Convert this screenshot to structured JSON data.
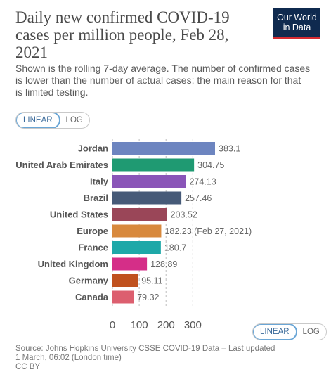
{
  "title": "Daily new confirmed COVID-19 cases per million people, Feb 28, 2021",
  "logo_line1": "Our World",
  "logo_line2": "in Data",
  "subtitle": "Shown is the rolling 7-day average. The number of confirmed cases is lower than the number of actual cases; the main reason for that is limited testing.",
  "scale_toggle": {
    "linear": "LINEAR",
    "log": "LOG",
    "active": "linear"
  },
  "source_line1": "Source: Johns Hopkins University CSSE COVID-19 Data – Last updated",
  "source_line2": "1 March, 06:02 (London time)",
  "license": "CC BY",
  "chart_data": {
    "type": "bar",
    "orientation": "horizontal",
    "categories": [
      "Jordan",
      "United Arab Emirates",
      "Italy",
      "Brazil",
      "United States",
      "Europe",
      "France",
      "United Kingdom",
      "Germany",
      "Canada"
    ],
    "values": [
      383.1,
      304.75,
      274.13,
      257.46,
      203.52,
      182.23,
      180.7,
      128.89,
      95.11,
      79.32
    ],
    "value_labels": [
      "383.1",
      "304.75",
      "274.13",
      "257.46",
      "203.52",
      "182.23 (Feb 27, 2021)",
      "180.7",
      "128.89",
      "95.11",
      "79.32"
    ],
    "colors": [
      "#6d85c0",
      "#1f9a72",
      "#8a55b8",
      "#465a78",
      "#9a4658",
      "#d8893d",
      "#1ea8a8",
      "#d52e88",
      "#c0511e",
      "#dc5f6f"
    ],
    "xticks": [
      0,
      100,
      200,
      300
    ],
    "xlim": [
      0,
      383.1
    ],
    "grid": true,
    "scale": "linear"
  }
}
